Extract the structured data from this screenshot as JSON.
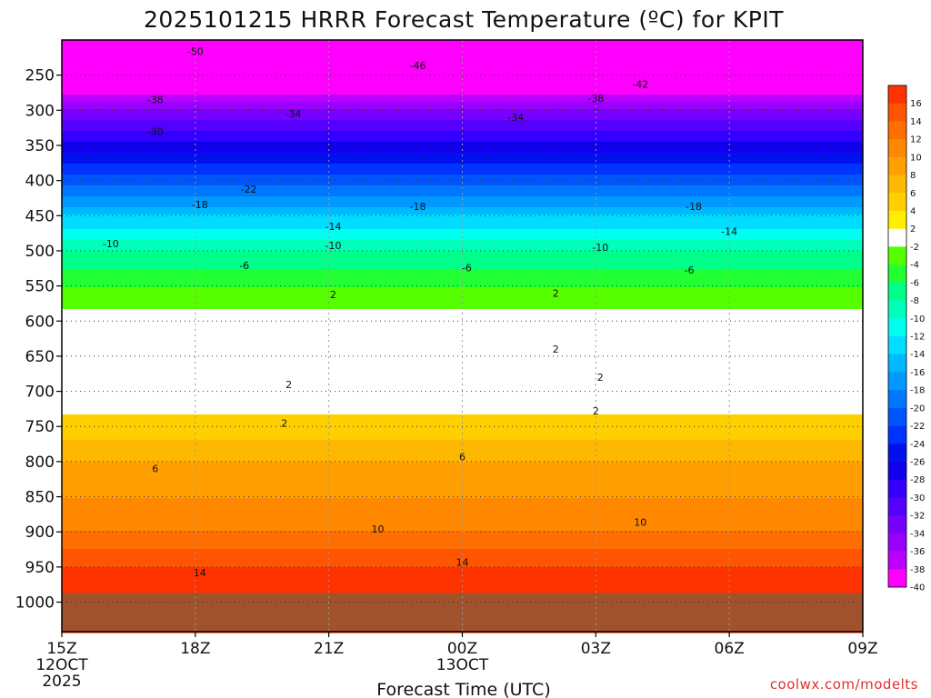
{
  "chart_data": {
    "type": "heatmap",
    "title": "2025101215 HRRR Forecast Temperature (ºC) for KPIT",
    "xlabel": "Forecast Time (UTC)",
    "credit": "coolwx.com/modelts",
    "y_axis": {
      "quantity": "pressure",
      "range": [
        1042,
        200
      ],
      "ticks": [
        "250",
        "300",
        "350",
        "400",
        "450",
        "500",
        "550",
        "600",
        "650",
        "700",
        "750",
        "800",
        "850",
        "900",
        "950",
        "1000"
      ]
    },
    "x_axis": {
      "range": [
        0,
        18
      ],
      "ticks": [
        {
          "label": "15Z",
          "line2": "12OCT",
          "line3": "2025"
        },
        {
          "label": "18Z",
          "line2": "",
          "line3": ""
        },
        {
          "label": "21Z",
          "line2": "",
          "line3": ""
        },
        {
          "label": "00Z",
          "line2": "13OCT",
          "line3": ""
        },
        {
          "label": "03Z",
          "line2": "",
          "line3": ""
        },
        {
          "label": "06Z",
          "line2": "",
          "line3": ""
        },
        {
          "label": "09Z",
          "line2": "",
          "line3": ""
        }
      ]
    },
    "colorbar": {
      "labels": [
        "16",
        "14",
        "12",
        "10",
        "8",
        "6",
        "4",
        "2",
        "-2",
        "-4",
        "-6",
        "-8",
        "-10",
        "-12",
        "-14",
        "-16",
        "-18",
        "-20",
        "-22",
        "-24",
        "-26",
        "-28",
        "-30",
        "-32",
        "-34",
        "-36",
        "-38",
        "-40"
      ],
      "colors": [
        "#ff3300",
        "#ff5500",
        "#ff6e00",
        "#ff8800",
        "#ffa000",
        "#ffb800",
        "#ffd000",
        "#ffee00",
        "#ffffff",
        "#55ff00",
        "#22ff33",
        "#00ff88",
        "#00ffbb",
        "#00ffee",
        "#00ddff",
        "#00b8ff",
        "#0099ff",
        "#0077ff",
        "#0055ff",
        "#0033ff",
        "#0011ee",
        "#1100ee",
        "#3300ff",
        "#5500ff",
        "#7700ff",
        "#9900ff",
        "#bb00ff",
        "#ff00ff"
      ]
    },
    "temperature_profile": [
      {
        "p": 1000,
        "t": 17
      },
      {
        "p": 975,
        "t": 16
      },
      {
        "p": 950,
        "t": 14
      },
      {
        "p": 900,
        "t": 10
      },
      {
        "p": 850,
        "t": 8
      },
      {
        "p": 800,
        "t": 6
      },
      {
        "p": 750,
        "t": 3
      },
      {
        "p": 700,
        "t": 0
      },
      {
        "p": 650,
        "t": -2
      },
      {
        "p": 600,
        "t": -1
      },
      {
        "p": 550,
        "t": -4
      },
      {
        "p": 500,
        "t": -8
      },
      {
        "p": 450,
        "t": -14
      },
      {
        "p": 400,
        "t": -21
      },
      {
        "p": 350,
        "t": -27
      },
      {
        "p": 300,
        "t": -34
      },
      {
        "p": 250,
        "t": -44
      },
      {
        "p": 200,
        "t": -52
      }
    ],
    "contour_labels": [
      {
        "text": "-50",
        "x": 3.0,
        "p": 216
      },
      {
        "text": "-46",
        "x": 8.0,
        "p": 236
      },
      {
        "text": "-42",
        "x": 13.0,
        "p": 263
      },
      {
        "text": "-38",
        "x": 2.1,
        "p": 285
      },
      {
        "text": "-38",
        "x": 12.0,
        "p": 283
      },
      {
        "text": "-34",
        "x": 5.2,
        "p": 305
      },
      {
        "text": "-34",
        "x": 10.2,
        "p": 310
      },
      {
        "text": "-30",
        "x": 2.1,
        "p": 330
      },
      {
        "text": "-22",
        "x": 4.2,
        "p": 412
      },
      {
        "text": "-18",
        "x": 3.1,
        "p": 434
      },
      {
        "text": "-18",
        "x": 8.0,
        "p": 437
      },
      {
        "text": "-18",
        "x": 14.2,
        "p": 437
      },
      {
        "text": "-14",
        "x": 6.1,
        "p": 465
      },
      {
        "text": "-14",
        "x": 15.0,
        "p": 472
      },
      {
        "text": "-10",
        "x": 1.1,
        "p": 490
      },
      {
        "text": "-10",
        "x": 6.1,
        "p": 492
      },
      {
        "text": "-10",
        "x": 12.1,
        "p": 495
      },
      {
        "text": "-6",
        "x": 4.1,
        "p": 521
      },
      {
        "text": "-6",
        "x": 9.1,
        "p": 524
      },
      {
        "text": "-6",
        "x": 14.1,
        "p": 527
      },
      {
        "text": "2",
        "x": 6.1,
        "p": 562
      },
      {
        "text": "2",
        "x": 11.1,
        "p": 560
      },
      {
        "text": "2",
        "x": 11.1,
        "p": 640
      },
      {
        "text": "2",
        "x": 5.1,
        "p": 690
      },
      {
        "text": "2",
        "x": 12.1,
        "p": 680
      },
      {
        "text": "2",
        "x": 5.0,
        "p": 745
      },
      {
        "text": "2",
        "x": 12.0,
        "p": 728
      },
      {
        "text": "6",
        "x": 2.1,
        "p": 810
      },
      {
        "text": "6",
        "x": 9.0,
        "p": 793
      },
      {
        "text": "10",
        "x": 7.1,
        "p": 896
      },
      {
        "text": "10",
        "x": 13.0,
        "p": 886
      },
      {
        "text": "14",
        "x": 3.1,
        "p": 958
      },
      {
        "text": "14",
        "x": 9.0,
        "p": 943
      }
    ]
  }
}
